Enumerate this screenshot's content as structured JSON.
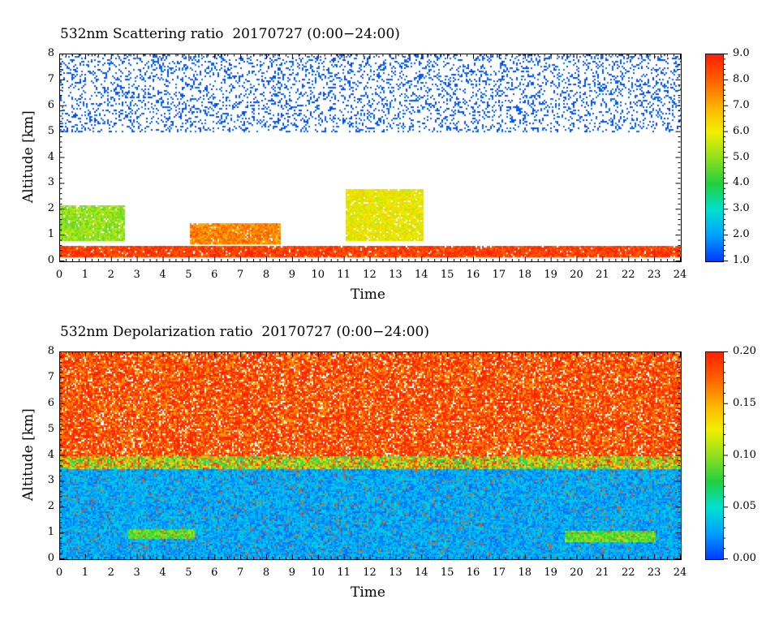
{
  "chart_data": [
    {
      "type": "heatmap",
      "title": "532nm Scattering ratio  20170727 (0:00−24:00)",
      "xlabel": "Time",
      "ylabel": "Altitude [km]",
      "xlim": [
        0,
        24
      ],
      "ylim": [
        0,
        8
      ],
      "x_ticks": [
        "0",
        "1",
        "2",
        "3",
        "4",
        "5",
        "6",
        "7",
        "8",
        "9",
        "10",
        "11",
        "12",
        "13",
        "14",
        "15",
        "16",
        "17",
        "18",
        "19",
        "20",
        "21",
        "22",
        "23",
        "24"
      ],
      "y_ticks": [
        "0",
        "1",
        "2",
        "3",
        "4",
        "5",
        "6",
        "7",
        "8"
      ],
      "colorbar": {
        "min": 1.0,
        "max": 9.0,
        "ticks": [
          "1.0",
          "2.0",
          "3.0",
          "4.0",
          "5.0",
          "6.0",
          "7.0",
          "8.0",
          "9.0"
        ],
        "colors": [
          "#0038ff",
          "#00a0ff",
          "#00e0d0",
          "#20d040",
          "#90e020",
          "#f0f000",
          "#ffb000",
          "#ff6000",
          "#ff2000"
        ]
      },
      "features": [
        {
          "desc": "boundary layer aerosol",
          "time": [
            0,
            24
          ],
          "altitude_km": [
            0.2,
            0.6
          ],
          "value": 8.5
        },
        {
          "desc": "cloud layer",
          "time": [
            0,
            2.5
          ],
          "altitude_km": [
            0.8,
            2.2
          ],
          "value": 5.0
        },
        {
          "desc": "cloud layer",
          "time": [
            5.0,
            8.5
          ],
          "altitude_km": [
            0.7,
            1.5
          ],
          "value": 7.5
        },
        {
          "desc": "convective clouds",
          "time": [
            11,
            14
          ],
          "altitude_km": [
            0.8,
            2.8
          ],
          "value": 6.0
        },
        {
          "desc": "upper noise",
          "time": [
            0,
            24
          ],
          "altitude_km": [
            5,
            8
          ],
          "value": 1.5
        }
      ]
    },
    {
      "type": "heatmap",
      "title": "532nm Depolarization ratio  20170727 (0:00−24:00)",
      "xlabel": "Time",
      "ylabel": "Altitude [km]",
      "xlim": [
        0,
        24
      ],
      "ylim": [
        0,
        8
      ],
      "x_ticks": [
        "0",
        "1",
        "2",
        "3",
        "4",
        "5",
        "6",
        "7",
        "8",
        "9",
        "10",
        "11",
        "12",
        "13",
        "14",
        "15",
        "16",
        "17",
        "18",
        "19",
        "20",
        "21",
        "22",
        "23",
        "24"
      ],
      "y_ticks": [
        "0",
        "1",
        "2",
        "3",
        "4",
        "5",
        "6",
        "7",
        "8"
      ],
      "colorbar": {
        "min": 0.0,
        "max": 0.2,
        "ticks": [
          "0.00",
          "0.05",
          "0.10",
          "0.15",
          "0.20"
        ],
        "colors": [
          "#0038ff",
          "#00a0ff",
          "#00e0d0",
          "#20d040",
          "#90e020",
          "#f0f000",
          "#ffb000",
          "#ff6000",
          "#ff2000"
        ]
      },
      "features": [
        {
          "desc": "low depolarization boundary layer",
          "time": [
            0,
            24
          ],
          "altitude_km": [
            0,
            3.5
          ],
          "value": 0.03
        },
        {
          "desc": "high depolarization upper noise",
          "time": [
            0,
            24
          ],
          "altitude_km": [
            4,
            8
          ],
          "value": 0.18
        },
        {
          "desc": "cloud layer",
          "time": [
            2.6,
            5.2
          ],
          "altitude_km": [
            0.8,
            1.2
          ],
          "value": 0.09
        },
        {
          "desc": "cloud layer",
          "time": [
            19.5,
            23.0
          ],
          "altitude_km": [
            0.7,
            1.1
          ],
          "value": 0.09
        }
      ]
    }
  ]
}
